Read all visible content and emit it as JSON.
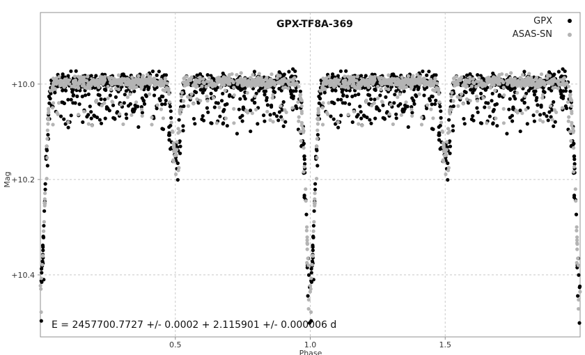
{
  "chart_data": {
    "type": "scatter",
    "title": "GPX-TF8A-369",
    "xlabel": "Phase",
    "ylabel": "Mag",
    "xlim": [
      0,
      2
    ],
    "ylim": [
      10.53,
      9.85
    ],
    "y_inverted": true,
    "x_ticks": [
      0.5,
      1.0,
      1.5
    ],
    "x_tick_labels": [
      "0.5",
      "1.0",
      "1.5"
    ],
    "y_ticks": [
      10.0,
      10.2,
      10.4
    ],
    "y_tick_labels": [
      "+10.0",
      "+10.2",
      "+10.4"
    ],
    "grid": true,
    "legend_position": "top-right",
    "annotation": "E = 2457700.7727 +/- 0.0002 + 2.115901 +/- 0.000006 d",
    "period_days": 2.115901,
    "epoch": 2457700.7727,
    "light_curve": {
      "baseline_mag": 10.0,
      "primary_eclipse_phase": 0.0,
      "primary_eclipse_depth_mag": 10.43,
      "secondary_eclipse_phase": 0.5,
      "secondary_eclipse_depth_mag": 10.15
    },
    "series": [
      {
        "name": "GPX",
        "color": "#000000"
      },
      {
        "name": "ASAS-SN",
        "color": "#b4b4b4"
      }
    ]
  }
}
